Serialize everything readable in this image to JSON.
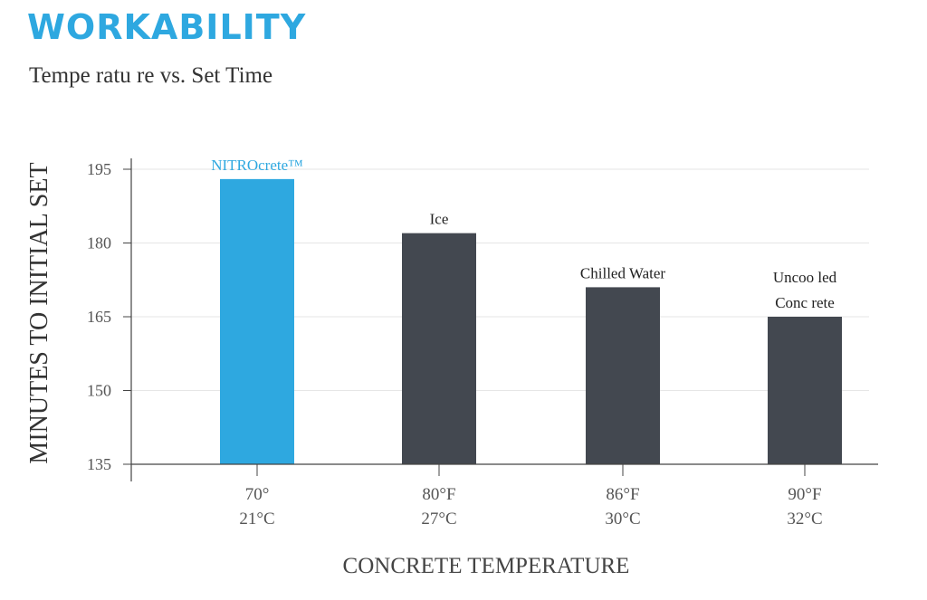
{
  "header": {
    "title": "WORKABILITY",
    "subtitle": "Tempe ratu re vs. Set Time"
  },
  "colors": {
    "highlight": "#2ea8e0",
    "bar": "#434850",
    "axis": "#444444",
    "grid": "#e6e6e6"
  },
  "chart_data": {
    "type": "bar",
    "title": "Tempe ratu re vs. Set Time",
    "xlabel": "CONCRETE TEMPERATURE",
    "ylabel": "MINUTES TO INITIAL SET",
    "ylim": [
      135,
      195
    ],
    "yticks": [
      135,
      150,
      165,
      180,
      195
    ],
    "grid": true,
    "categories": [
      [
        "70°",
        "21°C"
      ],
      [
        "80°F",
        "27°C"
      ],
      [
        "86°F",
        "30°C"
      ],
      [
        "90°F",
        "32°C"
      ]
    ],
    "values": [
      193,
      182,
      171,
      165
    ],
    "bar_labels": [
      [
        "NITROcrete™"
      ],
      [
        "Ice"
      ],
      [
        "Chilled Water"
      ],
      [
        "Uncoo led",
        "Conc rete"
      ]
    ],
    "highlight_index": 0
  }
}
